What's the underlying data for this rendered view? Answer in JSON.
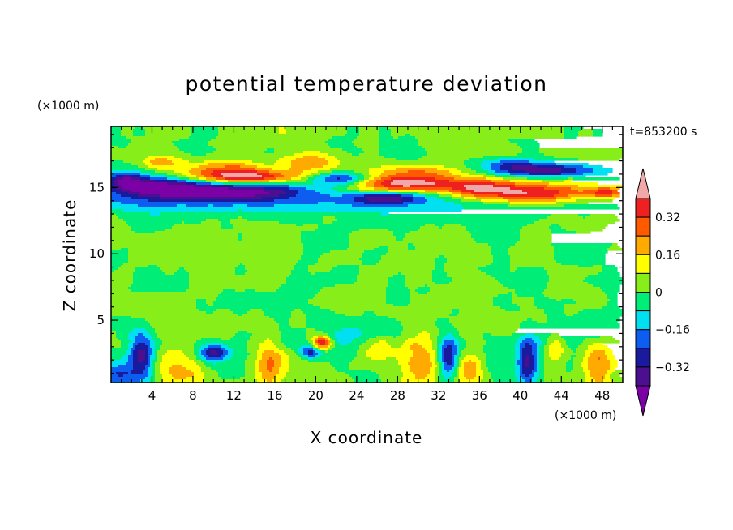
{
  "chart_data": {
    "type": "heatmap",
    "title": "potential temperature deviation",
    "xlabel": "X coordinate",
    "ylabel": "Z coordinate",
    "x_unit": "(×1000 m)",
    "y_unit": "(×1000 m)",
    "time_label": "t=853200 s",
    "xlim": [
      0,
      50
    ],
    "ylim": [
      0.3,
      19.6
    ],
    "x_ticks": [
      4,
      8,
      12,
      16,
      20,
      24,
      28,
      32,
      36,
      40,
      44,
      48
    ],
    "y_ticks": [
      5,
      10,
      15
    ],
    "colorbar": {
      "levels": [
        -0.4,
        -0.32,
        -0.24,
        -0.16,
        -0.08,
        0,
        0.08,
        0.16,
        0.24,
        0.32,
        0.4
      ],
      "tick_labels": [
        "0.32",
        "0.16",
        "0",
        "−0.16",
        "−0.32"
      ],
      "tick_values": [
        0.32,
        0.16,
        0,
        -0.16,
        -0.32
      ],
      "colors": [
        "#7b00a6",
        "#4b0f8f",
        "#1a1a9e",
        "#0c5df0",
        "#00e0f0",
        "#00ee78",
        "#88ee1a",
        "#ffff00",
        "#ffaa00",
        "#ff5a00",
        "#ee2020",
        "#f0a8a8"
      ]
    },
    "field_components": [
      {
        "kind": "band",
        "z_center": 13.8,
        "z_width": 0.55,
        "amp": -0.14
      },
      {
        "kind": "blob",
        "x": 5,
        "z": 15.0,
        "sx": 3.5,
        "sz": 0.55,
        "amp": -0.42
      },
      {
        "kind": "blob",
        "x": 13,
        "z": 14.7,
        "sx": 5.0,
        "sz": 0.45,
        "amp": -0.4
      },
      {
        "kind": "blob",
        "x": 1.5,
        "z": 15.6,
        "sx": 1.5,
        "sz": 0.5,
        "amp": -0.3
      },
      {
        "kind": "blob",
        "x": 5,
        "z": 16.9,
        "sx": 1.2,
        "sz": 0.35,
        "amp": 0.2
      },
      {
        "kind": "blob",
        "x": 13,
        "z": 15.8,
        "sx": 3.8,
        "sz": 0.38,
        "amp": 0.44
      },
      {
        "kind": "blob",
        "x": 11,
        "z": 16.5,
        "sx": 3.0,
        "sz": 0.4,
        "amp": 0.2
      },
      {
        "kind": "blob",
        "x": 19.5,
        "z": 16.9,
        "sx": 2.0,
        "sz": 0.5,
        "amp": 0.22
      },
      {
        "kind": "blob",
        "x": 22.5,
        "z": 15.6,
        "sx": 2.2,
        "sz": 0.38,
        "amp": -0.38
      },
      {
        "kind": "blob",
        "x": 28.5,
        "z": 15.3,
        "sx": 4.2,
        "sz": 0.42,
        "amp": 0.44
      },
      {
        "kind": "blob",
        "x": 30,
        "z": 16.2,
        "sx": 3.5,
        "sz": 0.35,
        "amp": 0.2
      },
      {
        "kind": "blob",
        "x": 27,
        "z": 14.2,
        "sx": 2.5,
        "sz": 0.3,
        "amp": -0.3
      },
      {
        "kind": "blob",
        "x": 41,
        "z": 14.5,
        "sx": 4.5,
        "sz": 0.6,
        "amp": 0.45
      },
      {
        "kind": "blob",
        "x": 36,
        "z": 15.0,
        "sx": 2.2,
        "sz": 0.5,
        "amp": 0.22
      },
      {
        "kind": "blob",
        "x": 42.5,
        "z": 16.3,
        "sx": 3.6,
        "sz": 0.38,
        "amp": -0.38
      },
      {
        "kind": "blob",
        "x": 38.5,
        "z": 16.8,
        "sx": 2.0,
        "sz": 0.35,
        "amp": -0.16
      },
      {
        "kind": "blob",
        "x": 48.5,
        "z": 14.6,
        "sx": 1.2,
        "sz": 0.3,
        "amp": 0.3
      },
      {
        "kind": "blob",
        "x": 3,
        "z": 2.3,
        "sx": 0.9,
        "sz": 1.3,
        "amp": -0.38
      },
      {
        "kind": "blob",
        "x": 0.8,
        "z": 1.0,
        "sx": 1.0,
        "sz": 0.6,
        "amp": -0.2
      },
      {
        "kind": "blob",
        "x": 6.5,
        "z": 1.3,
        "sx": 1.8,
        "sz": 0.9,
        "amp": 0.22
      },
      {
        "kind": "blob",
        "x": 10,
        "z": 2.6,
        "sx": 1.1,
        "sz": 0.5,
        "amp": -0.36
      },
      {
        "kind": "blob",
        "x": 15.5,
        "z": 1.8,
        "sx": 1.0,
        "sz": 1.4,
        "amp": 0.22
      },
      {
        "kind": "blob",
        "x": 19.5,
        "z": 2.6,
        "sx": 0.8,
        "sz": 0.4,
        "amp": -0.3
      },
      {
        "kind": "blob",
        "x": 20.6,
        "z": 3.3,
        "sx": 0.65,
        "sz": 0.4,
        "amp": 0.44
      },
      {
        "kind": "blob",
        "x": 30,
        "z": 1.8,
        "sx": 1.5,
        "sz": 1.5,
        "amp": 0.22
      },
      {
        "kind": "blob",
        "x": 33,
        "z": 2.2,
        "sx": 0.7,
        "sz": 1.1,
        "amp": -0.38
      },
      {
        "kind": "blob",
        "x": 35,
        "z": 1.3,
        "sx": 0.9,
        "sz": 0.8,
        "amp": 0.18
      },
      {
        "kind": "blob",
        "x": 40.7,
        "z": 1.9,
        "sx": 0.75,
        "sz": 1.2,
        "amp": -0.38
      },
      {
        "kind": "blob",
        "x": 47.5,
        "z": 1.9,
        "sx": 1.1,
        "sz": 1.3,
        "amp": 0.22
      },
      {
        "kind": "blob",
        "x": 43.5,
        "z": 2.8,
        "sx": 0.8,
        "sz": 0.9,
        "amp": 0.14
      },
      {
        "kind": "blob",
        "x": 26,
        "z": 2.8,
        "sx": 1.2,
        "sz": 0.8,
        "amp": 0.12
      },
      {
        "kind": "blob",
        "x": 37.5,
        "z": 2.0,
        "sx": 1.0,
        "sz": 1.0,
        "amp": -0.1
      },
      {
        "kind": "blob",
        "x": 24,
        "z": 3.6,
        "sx": 3.0,
        "sz": 0.8,
        "amp": -0.12
      },
      {
        "kind": "blob",
        "x": 45,
        "z": 4.0,
        "sx": 3.0,
        "sz": 1.0,
        "amp": -0.1
      }
    ]
  }
}
